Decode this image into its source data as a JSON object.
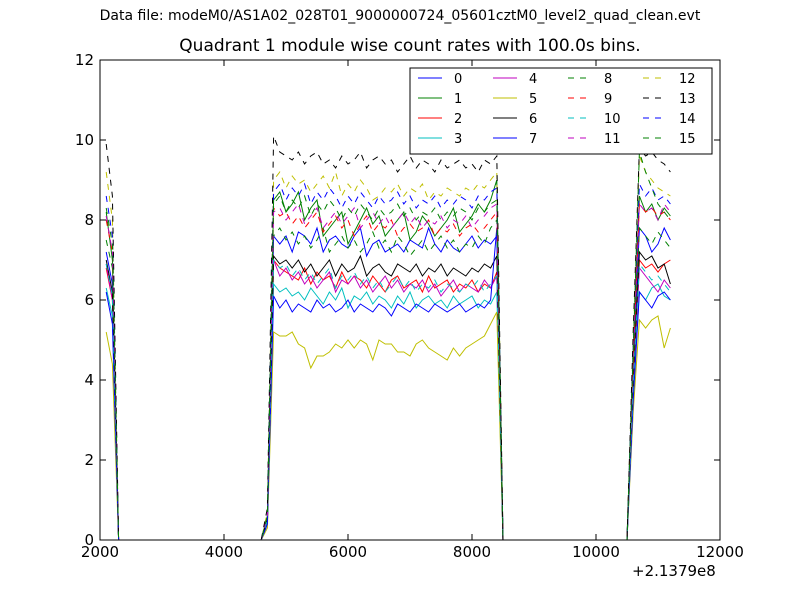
{
  "header": {
    "suptitle": "Data file: modeM0/AS1A02_028T01_9000000724_05601cztM0_level2_quad_clean.evt"
  },
  "chart_data": {
    "type": "line",
    "title": "Quadrant 1 module wise count rates with 100.0s bins.",
    "xlabel": "",
    "ylabel": "",
    "x_offset_label": "+2.1379e8",
    "xlim": [
      2000,
      12000
    ],
    "ylim": [
      0,
      12
    ],
    "xticks": [
      2000,
      4000,
      6000,
      8000,
      10000,
      12000
    ],
    "yticks": [
      0,
      2,
      4,
      6,
      8,
      10,
      12
    ],
    "grid": false,
    "legend_position": "top-right",
    "segments": [
      {
        "x_start": 2100,
        "x_end": 2300,
        "x_step": 100
      },
      {
        "x_start": 4600,
        "x_end": 8500,
        "x_step": 100
      },
      {
        "x_start": 10500,
        "x_end": 11200,
        "x_step": 100
      }
    ],
    "series": [
      {
        "name": "0",
        "color": "#0000ff",
        "dashed": false,
        "values": [
          [
            7.2,
            6.4,
            0
          ],
          [
            0,
            0.4,
            7.6,
            7.4,
            7.6,
            7.2,
            7.7,
            7.6,
            7.4,
            7.8,
            7.2,
            7.5,
            7.6,
            7.4,
            7.3,
            7.6,
            7.8,
            7.1,
            7.4,
            7.5,
            7.2,
            7.3,
            7.4,
            7.2,
            7.5,
            7.4,
            7.3,
            7.8,
            7.4,
            7.2,
            7.5,
            7.3,
            7.2,
            7.4,
            7.6,
            7.3,
            7.5,
            7.4,
            7.6,
            0
          ],
          [
            0,
            4.2,
            7.8,
            7.6,
            7.2,
            7.4,
            7.8,
            7.5
          ]
        ]
      },
      {
        "name": "1",
        "color": "#008000",
        "dashed": false,
        "values": [
          [
            8.2,
            7.0,
            0
          ],
          [
            0,
            0.6,
            8.5,
            8.7,
            8.2,
            8.4,
            8.7,
            8.0,
            8.3,
            8.5,
            7.6,
            7.8,
            8.0,
            8.2,
            7.4,
            7.7,
            8.0,
            8.3,
            7.9,
            8.1,
            7.6,
            7.8,
            8.0,
            8.2,
            7.5,
            7.7,
            8.1,
            7.9,
            7.6,
            7.8,
            8.0,
            8.3,
            7.7,
            7.9,
            8.1,
            8.4,
            8.2,
            8.5,
            9.0,
            0
          ],
          [
            0,
            4.6,
            8.6,
            8.2,
            8.4,
            8.0,
            8.3,
            8.1
          ]
        ]
      },
      {
        "name": "2",
        "color": "#ff0000",
        "dashed": false,
        "values": [
          [
            6.8,
            6.0,
            0
          ],
          [
            0,
            0.5,
            7.0,
            6.8,
            6.7,
            6.6,
            6.5,
            6.8,
            6.4,
            6.7,
            6.5,
            6.6,
            6.3,
            6.7,
            6.4,
            6.6,
            6.5,
            6.3,
            6.6,
            6.4,
            6.2,
            6.5,
            6.6,
            6.3,
            6.4,
            6.5,
            6.2,
            6.6,
            6.3,
            6.4,
            6.5,
            6.2,
            6.4,
            6.3,
            6.5,
            6.2,
            6.4,
            6.3,
            6.7,
            0
          ],
          [
            0,
            3.8,
            7.0,
            6.8,
            6.9,
            6.7,
            6.9,
            7.0
          ]
        ]
      },
      {
        "name": "3",
        "color": "#00bfbf",
        "dashed": false,
        "values": [
          [
            6.3,
            5.6,
            0
          ],
          [
            0,
            0.4,
            6.4,
            6.2,
            6.3,
            6.1,
            6.2,
            6.0,
            6.3,
            6.1,
            5.9,
            6.2,
            6.0,
            6.3,
            5.8,
            6.1,
            6.0,
            6.2,
            5.9,
            6.1,
            6.0,
            5.8,
            6.1,
            5.9,
            6.2,
            5.8,
            6.0,
            6.1,
            5.9,
            6.0,
            5.8,
            6.1,
            5.9,
            6.0,
            6.1,
            5.8,
            6.0,
            5.9,
            6.2,
            0
          ],
          [
            0,
            3.6,
            6.2,
            6.0,
            6.3,
            6.4,
            6.1,
            6.0
          ]
        ]
      },
      {
        "name": "4",
        "color": "#bf00bf",
        "dashed": false,
        "values": [
          [
            6.9,
            6.0,
            0
          ],
          [
            0,
            0.5,
            7.0,
            6.6,
            6.8,
            6.5,
            6.7,
            6.4,
            6.6,
            6.3,
            6.5,
            6.7,
            6.2,
            6.5,
            6.4,
            6.6,
            6.3,
            6.5,
            6.2,
            6.4,
            6.6,
            6.3,
            6.5,
            6.2,
            6.4,
            6.3,
            6.5,
            6.2,
            6.4,
            6.1,
            6.3,
            6.5,
            6.2,
            6.4,
            6.3,
            6.2,
            6.5,
            6.3,
            6.6,
            0
          ],
          [
            0,
            3.9,
            6.8,
            6.6,
            6.4,
            6.2,
            6.5,
            6.3
          ]
        ]
      },
      {
        "name": "5",
        "color": "#bfbf00",
        "dashed": false,
        "values": [
          [
            5.2,
            4.4,
            0
          ],
          [
            0,
            0.3,
            5.2,
            5.1,
            5.1,
            5.2,
            4.9,
            4.8,
            4.3,
            4.6,
            4.6,
            4.7,
            4.9,
            4.8,
            5.0,
            4.8,
            5.0,
            4.9,
            4.5,
            5.0,
            4.9,
            4.9,
            4.7,
            4.7,
            4.6,
            4.9,
            5.0,
            4.8,
            4.7,
            4.6,
            4.5,
            4.8,
            4.6,
            4.8,
            4.9,
            5.0,
            5.1,
            5.4,
            5.7,
            0
          ],
          [
            0,
            3.2,
            5.5,
            5.3,
            5.5,
            5.6,
            4.8,
            5.3
          ]
        ]
      },
      {
        "name": "6",
        "color": "#000000",
        "dashed": false,
        "values": [
          [
            7.0,
            6.2,
            0
          ],
          [
            0,
            0.5,
            7.1,
            6.9,
            7.0,
            6.8,
            7.0,
            6.7,
            6.9,
            6.6,
            6.8,
            7.0,
            6.6,
            6.9,
            6.7,
            6.8,
            7.1,
            6.6,
            6.8,
            6.9,
            6.7,
            6.6,
            6.9,
            6.8,
            6.7,
            6.9,
            6.6,
            6.8,
            6.7,
            6.9,
            6.6,
            6.8,
            6.7,
            6.6,
            6.8,
            6.7,
            6.9,
            6.8,
            7.1,
            0
          ],
          [
            0,
            4.0,
            7.2,
            7.0,
            7.1,
            6.8,
            6.9,
            6.4
          ]
        ]
      },
      {
        "name": "7",
        "color": "#0000ff",
        "dashed": false,
        "values": [
          [
            6.2,
            5.4,
            0
          ],
          [
            0,
            0.4,
            6.1,
            5.8,
            6.0,
            5.7,
            5.9,
            5.8,
            5.7,
            6.0,
            5.8,
            5.9,
            5.7,
            5.8,
            6.0,
            5.7,
            5.9,
            5.8,
            5.7,
            5.9,
            5.8,
            5.6,
            5.9,
            5.8,
            5.7,
            5.9,
            5.8,
            5.7,
            5.9,
            5.8,
            5.7,
            5.8,
            5.9,
            5.7,
            5.8,
            5.9,
            5.8,
            6.0,
            7.8,
            0
          ],
          [
            0,
            3.5,
            6.2,
            6.0,
            5.8,
            6.1,
            6.2,
            6.0
          ]
        ]
      },
      {
        "name": "8",
        "color": "#008000",
        "dashed": true,
        "values": [
          [
            7.5,
            6.8,
            0
          ],
          [
            0,
            0.5,
            7.6,
            7.8,
            7.5,
            7.7,
            7.4,
            7.6,
            7.3,
            7.5,
            7.8,
            7.2,
            7.4,
            7.6,
            7.3,
            7.5,
            7.2,
            7.4,
            7.7,
            7.3,
            7.5,
            7.2,
            7.6,
            7.4,
            7.1,
            7.3,
            7.5,
            7.2,
            7.4,
            7.6,
            7.3,
            7.5,
            7.2,
            7.4,
            7.3,
            7.6,
            7.4,
            7.8,
            8.0,
            0
          ],
          [
            0,
            4.3,
            7.8,
            7.6,
            7.4,
            7.7,
            7.5,
            7.3
          ]
        ]
      },
      {
        "name": "9",
        "color": "#ff0000",
        "dashed": true,
        "values": [
          [
            8.0,
            7.2,
            0
          ],
          [
            0,
            0.6,
            8.3,
            8.1,
            8.2,
            7.9,
            8.1,
            7.8,
            8.0,
            8.2,
            7.7,
            7.9,
            8.1,
            7.8,
            8.0,
            7.6,
            7.9,
            8.1,
            7.7,
            7.9,
            7.8,
            8.0,
            7.6,
            7.8,
            7.9,
            7.7,
            7.8,
            8.0,
            7.6,
            7.8,
            7.7,
            7.9,
            7.6,
            7.8,
            7.9,
            7.7,
            7.8,
            8.0,
            8.2,
            0
          ],
          [
            0,
            4.4,
            8.4,
            8.2,
            8.3,
            8.1,
            8.2,
            8.0
          ]
        ]
      },
      {
        "name": "10",
        "color": "#00bfbf",
        "dashed": true,
        "values": [
          [
            6.9,
            6.1,
            0
          ],
          [
            0,
            0.5,
            7.0,
            6.8,
            6.9,
            6.6,
            6.8,
            6.5,
            6.7,
            6.4,
            6.6,
            6.8,
            6.3,
            6.6,
            6.5,
            6.7,
            6.4,
            6.6,
            6.3,
            6.5,
            6.2,
            6.4,
            6.6,
            6.3,
            6.5,
            6.2,
            6.4,
            6.3,
            6.5,
            6.2,
            6.4,
            6.3,
            6.2,
            6.4,
            6.3,
            6.5,
            6.2,
            6.4,
            6.6,
            0
          ],
          [
            0,
            3.9,
            6.9,
            6.7,
            6.5,
            6.6,
            6.4,
            6.2
          ]
        ]
      },
      {
        "name": "11",
        "color": "#bf00bf",
        "dashed": true,
        "values": [
          [
            8.1,
            7.2,
            0
          ],
          [
            0,
            0.6,
            8.2,
            8.3,
            8.0,
            8.2,
            8.4,
            7.9,
            8.1,
            8.3,
            7.8,
            8.0,
            8.2,
            7.9,
            8.1,
            8.3,
            7.8,
            8.0,
            8.2,
            7.9,
            8.1,
            7.8,
            8.0,
            8.2,
            7.9,
            8.1,
            7.8,
            8.0,
            7.9,
            8.1,
            7.8,
            8.0,
            7.9,
            8.1,
            7.8,
            8.0,
            8.1,
            8.3,
            8.4,
            0
          ],
          [
            0,
            4.5,
            8.4,
            8.2,
            8.3,
            8.0,
            8.4,
            8.2
          ]
        ]
      },
      {
        "name": "12",
        "color": "#bfbf00",
        "dashed": true,
        "values": [
          [
            9.2,
            8.0,
            0
          ],
          [
            0,
            0.7,
            9.0,
            9.2,
            8.8,
            9.1,
            8.9,
            9.0,
            8.7,
            8.9,
            9.1,
            8.8,
            9.2,
            8.6,
            8.9,
            8.7,
            9.0,
            8.8,
            8.5,
            8.6,
            8.8,
            8.7,
            8.9,
            8.6,
            8.8,
            8.7,
            8.9,
            8.5,
            8.7,
            8.6,
            8.8,
            8.7,
            8.6,
            8.8,
            8.7,
            8.9,
            8.8,
            9.0,
            9.2,
            0
          ],
          [
            0,
            5.0,
            9.6,
            9.2,
            9.0,
            8.8,
            8.7,
            8.6
          ]
        ]
      },
      {
        "name": "13",
        "color": "#000000",
        "dashed": true,
        "values": [
          [
            9.9,
            8.6,
            0
          ],
          [
            0,
            0.8,
            10.1,
            9.7,
            9.6,
            9.5,
            9.7,
            9.4,
            9.6,
            9.7,
            9.4,
            9.5,
            9.3,
            9.6,
            9.4,
            9.5,
            9.7,
            9.3,
            9.5,
            9.6,
            9.4,
            9.5,
            9.2,
            9.4,
            9.6,
            9.3,
            9.5,
            9.4,
            9.2,
            9.5,
            9.3,
            9.4,
            9.5,
            9.3,
            9.4,
            9.2,
            9.5,
            9.4,
            9.6,
            0
          ],
          [
            0,
            5.2,
            9.8,
            9.6,
            9.7,
            9.5,
            9.4,
            9.2
          ]
        ]
      },
      {
        "name": "14",
        "color": "#0000ff",
        "dashed": true,
        "values": [
          [
            8.6,
            7.6,
            0
          ],
          [
            0,
            0.6,
            8.7,
            8.9,
            8.5,
            8.8,
            8.6,
            8.9,
            8.4,
            8.7,
            8.5,
            8.8,
            8.6,
            8.3,
            8.6,
            8.4,
            8.7,
            8.5,
            8.3,
            8.6,
            8.4,
            8.5,
            8.7,
            8.4,
            8.6,
            8.3,
            8.5,
            8.4,
            8.6,
            8.3,
            8.5,
            8.4,
            8.6,
            8.5,
            8.3,
            8.6,
            8.5,
            8.7,
            8.8,
            0
          ],
          [
            0,
            4.8,
            8.9,
            8.6,
            8.8,
            8.5,
            8.6,
            8.4
          ]
        ]
      },
      {
        "name": "15",
        "color": "#008000",
        "dashed": true,
        "values": [
          [
            8.3,
            7.4,
            0
          ],
          [
            0,
            0.6,
            8.4,
            8.6,
            8.2,
            8.5,
            8.3,
            8.6,
            8.1,
            8.4,
            8.2,
            8.5,
            8.3,
            8.0,
            8.3,
            8.1,
            8.4,
            8.2,
            8.0,
            8.3,
            8.1,
            8.2,
            8.4,
            8.1,
            8.3,
            8.0,
            8.2,
            8.1,
            8.3,
            8.0,
            8.2,
            8.1,
            8.3,
            8.2,
            8.0,
            8.3,
            8.2,
            8.4,
            8.5,
            0
          ],
          [
            0,
            4.7,
            9.7,
            9.2,
            8.8,
            8.4,
            8.2,
            8.0
          ]
        ]
      }
    ]
  }
}
